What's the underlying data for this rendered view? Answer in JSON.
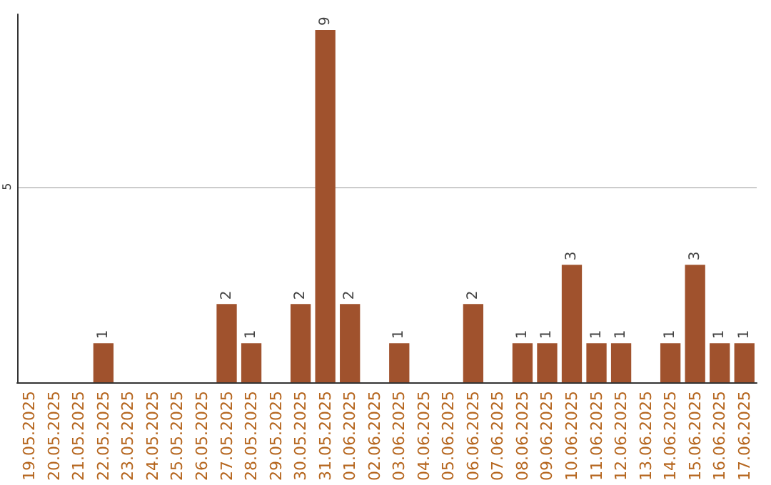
{
  "chart_data": {
    "type": "bar",
    "categories": [
      "19.05.2025",
      "20.05.2025",
      "21.05.2025",
      "22.05.2025",
      "23.05.2025",
      "24.05.2025",
      "25.05.2025",
      "26.05.2025",
      "27.05.2025",
      "28.05.2025",
      "29.05.2025",
      "30.05.2025",
      "31.05.2025",
      "01.06.2025",
      "02.06.2025",
      "03.06.2025",
      "04.06.2025",
      "05.06.2025",
      "06.06.2025",
      "07.06.2025",
      "08.06.2025",
      "09.06.2025",
      "10.06.2025",
      "11.06.2025",
      "12.06.2025",
      "13.06.2025",
      "14.06.2025",
      "15.06.2025",
      "16.06.2025",
      "17.06.2025"
    ],
    "values": [
      0,
      0,
      0,
      1,
      0,
      0,
      0,
      0,
      2,
      1,
      0,
      2,
      9,
      2,
      0,
      1,
      0,
      0,
      2,
      0,
      1,
      1,
      3,
      1,
      1,
      0,
      1,
      3,
      1,
      1
    ],
    "value_labels": [
      null,
      null,
      null,
      "1",
      null,
      null,
      null,
      null,
      "2",
      "1",
      null,
      "2",
      "9",
      "2",
      null,
      "1",
      null,
      null,
      "2",
      null,
      "1",
      "1",
      "3",
      "1",
      "1",
      null,
      "1",
      "3",
      "1",
      "1"
    ],
    "color": "#a0522d",
    "ylim": [
      0,
      9.4
    ],
    "yticks": [
      5
    ],
    "grid": "y"
  }
}
